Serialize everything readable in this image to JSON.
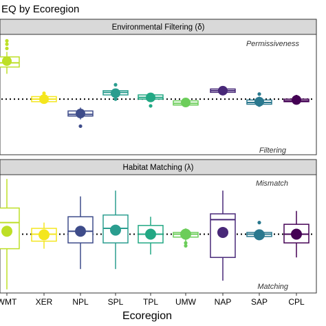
{
  "chart_data": [
    {
      "type": "box",
      "title": "EQ by Ecoregion",
      "xlabel": "Ecoregion",
      "panel": "Environmental Filtering (δ)",
      "annotations": {
        "top": "Permissiveness",
        "bottom": "Filtering"
      },
      "reference_line": 1.0,
      "ylim": [
        0.35,
        1.75
      ],
      "categories": [
        "WMT",
        "XER",
        "NPL",
        "SPL",
        "TPL",
        "UMW",
        "NAP",
        "SAP",
        "CPL"
      ],
      "colors": [
        "#bddf26",
        "#f4e61e",
        "#3e4c8a",
        "#2a9d8f",
        "#22a884",
        "#6ccd5a",
        "#482878",
        "#2a788e",
        "#440154"
      ],
      "boxes": [
        {
          "min": 1.3,
          "q1": 1.38,
          "median": 1.43,
          "q3": 1.5,
          "max": 1.56,
          "mean": 1.45,
          "outliers": [
            1.6,
            1.65,
            1.69
          ]
        },
        {
          "min": 0.95,
          "q1": 0.97,
          "median": 1.0,
          "q3": 1.03,
          "max": 1.06,
          "mean": 1.0,
          "outliers": [
            1.07
          ]
        },
        {
          "min": 0.76,
          "q1": 0.8,
          "median": 0.82,
          "q3": 0.86,
          "max": 0.9,
          "mean": 0.83,
          "outliers": [
            0.68
          ]
        },
        {
          "min": 1.03,
          "q1": 1.05,
          "median": 1.08,
          "q3": 1.1,
          "max": 1.12,
          "mean": 1.07,
          "outliers": [
            1.17,
            1.0
          ]
        },
        {
          "min": 0.97,
          "q1": 1.0,
          "median": 1.02,
          "q3": 1.05,
          "max": 1.07,
          "mean": 1.02,
          "outliers": [
            0.92
          ]
        },
        {
          "min": 0.91,
          "q1": 0.93,
          "median": 0.95,
          "q3": 0.98,
          "max": 1.0,
          "mean": 0.96,
          "outliers": []
        },
        {
          "min": 1.06,
          "q1": 1.08,
          "median": 1.1,
          "q3": 1.12,
          "max": 1.14,
          "mean": 1.1,
          "outliers": []
        },
        {
          "min": 0.92,
          "q1": 0.94,
          "median": 0.96,
          "q3": 0.99,
          "max": 1.03,
          "mean": 0.97,
          "outliers": [
            1.06,
            0.93
          ]
        },
        {
          "min": 0.96,
          "q1": 0.97,
          "median": 0.98,
          "q3": 1.0,
          "max": 1.02,
          "mean": 0.99,
          "outliers": [
            1.03,
            0.96
          ]
        }
      ]
    },
    {
      "type": "box",
      "panel": "Habitat Matching (λ)",
      "annotations": {
        "top": "Mismatch",
        "bottom": "Matching"
      },
      "reference_line": 1.0,
      "ylim": [
        0.0,
        2.0
      ],
      "categories": [
        "WMT",
        "XER",
        "NPL",
        "SPL",
        "TPL",
        "UMW",
        "NAP",
        "SAP",
        "CPL"
      ],
      "colors": [
        "#bddf26",
        "#f4e61e",
        "#3e4c8a",
        "#2a9d8f",
        "#22a884",
        "#6ccd5a",
        "#482878",
        "#2a788e",
        "#440154"
      ],
      "boxes": [
        {
          "min": 0.05,
          "q1": 0.75,
          "median": 1.2,
          "q3": 1.45,
          "max": 1.95,
          "mean": 1.05,
          "outliers": []
        },
        {
          "min": 0.75,
          "q1": 0.88,
          "median": 1.0,
          "q3": 1.1,
          "max": 1.2,
          "mean": 0.99,
          "outliers": []
        },
        {
          "min": 0.4,
          "q1": 0.85,
          "median": 1.05,
          "q3": 1.3,
          "max": 1.65,
          "mean": 1.05,
          "outliers": []
        },
        {
          "min": 0.4,
          "q1": 0.85,
          "median": 1.1,
          "q3": 1.33,
          "max": 1.75,
          "mean": 1.07,
          "outliers": []
        },
        {
          "min": 0.65,
          "q1": 0.85,
          "median": 1.0,
          "q3": 1.15,
          "max": 1.3,
          "mean": 1.0,
          "outliers": []
        },
        {
          "min": 0.87,
          "q1": 0.95,
          "median": 1.0,
          "q3": 1.03,
          "max": 1.1,
          "mean": 1.0,
          "outliers": [
            0.8,
            0.85
          ]
        },
        {
          "min": 0.2,
          "q1": 0.6,
          "median": 1.25,
          "q3": 1.35,
          "max": 1.75,
          "mean": 1.03,
          "outliers": []
        },
        {
          "min": 0.93,
          "q1": 0.96,
          "median": 1.0,
          "q3": 1.03,
          "max": 1.08,
          "mean": 0.99,
          "outliers": [
            1.2
          ]
        },
        {
          "min": 0.6,
          "q1": 0.85,
          "median": 1.0,
          "q3": 1.17,
          "max": 1.4,
          "mean": 1.0,
          "outliers": []
        }
      ]
    }
  ]
}
